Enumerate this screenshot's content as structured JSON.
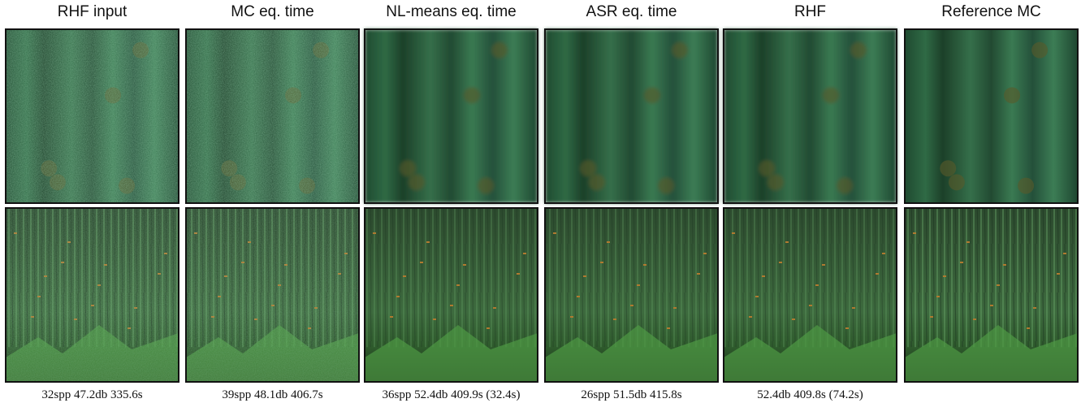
{
  "columns": [
    {
      "header": "RHF input",
      "caption": "32spp 47.2db 335.6s"
    },
    {
      "header": "MC eq. time",
      "caption": "39spp 48.1db 406.7s"
    },
    {
      "header": "NL-means eq. time",
      "caption": "36spp 52.4db 409.9s (32.4s)"
    },
    {
      "header": "ASR eq. time",
      "caption": "26spp 51.5db 415.8s"
    },
    {
      "header": "RHF",
      "caption": "52.4db 409.8s (74.2s)"
    },
    {
      "header": "Reference MC"
    }
  ]
}
